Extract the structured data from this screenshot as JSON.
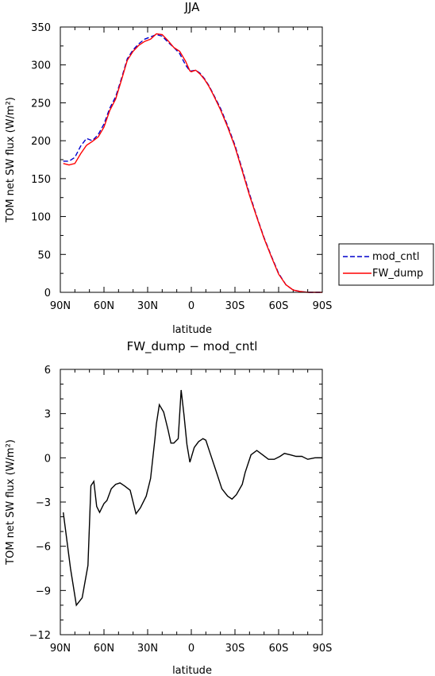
{
  "chart_data": [
    {
      "type": "line",
      "title": "JJA",
      "xlabel": "latitude",
      "ylabel": "TOM net SW flux (W/m²)",
      "xlim": [
        -90,
        90
      ],
      "ylim": [
        0,
        350
      ],
      "x_ticks": [
        -90,
        -60,
        -30,
        0,
        30,
        60,
        90
      ],
      "x_tick_labels": [
        "90N",
        "60N",
        "30N",
        "0",
        "30S",
        "60S",
        "90S"
      ],
      "y_ticks": [
        0,
        50,
        100,
        150,
        200,
        250,
        300,
        350
      ],
      "y_tick_labels": [
        "0",
        "50",
        "100",
        "150",
        "200",
        "250",
        "300",
        "350"
      ],
      "legend": "right",
      "series": [
        {
          "name": "mod_cntl",
          "color": "#0000cc",
          "dash": "dashed",
          "x": [
            -88,
            -84,
            -80,
            -76,
            -72,
            -68,
            -64,
            -60,
            -56,
            -52,
            -48,
            -44,
            -40,
            -36,
            -32,
            -28,
            -24,
            -20,
            -16,
            -12,
            -8,
            -4,
            -1,
            0,
            3,
            6,
            9,
            12,
            15,
            20,
            25,
            30,
            35,
            40,
            45,
            50,
            55,
            60,
            65,
            70,
            75,
            80,
            85,
            90
          ],
          "y": [
            173,
            173,
            178,
            193,
            203,
            200,
            208,
            222,
            243,
            258,
            282,
            308,
            320,
            328,
            334,
            337,
            340,
            338,
            330,
            323,
            315,
            300,
            292,
            292,
            293,
            289,
            282,
            273,
            262,
            243,
            220,
            194,
            162,
            130,
            100,
            72,
            48,
            25,
            10,
            3,
            1,
            0,
            0,
            0
          ]
        },
        {
          "name": "FW_dump",
          "color": "#ff0000",
          "dash": "solid",
          "x": [
            -88,
            -84,
            -80,
            -76,
            -72,
            -68,
            -64,
            -60,
            -56,
            -52,
            -48,
            -44,
            -40,
            -36,
            -32,
            -28,
            -24,
            -20,
            -16,
            -12,
            -8,
            -4,
            -1,
            0,
            3,
            6,
            9,
            12,
            15,
            20,
            25,
            30,
            35,
            40,
            45,
            50,
            55,
            60,
            65,
            70,
            75,
            80,
            85,
            90
          ],
          "y": [
            170,
            168,
            170,
            183,
            194,
            199,
            205,
            218,
            240,
            255,
            280,
            306,
            318,
            326,
            331,
            334,
            341,
            340,
            332,
            323,
            318,
            305,
            292,
            291,
            293,
            288,
            281,
            272,
            261,
            241,
            218,
            192,
            160,
            128,
            99,
            71,
            47,
            24,
            10,
            3,
            1,
            0,
            0,
            0
          ]
        }
      ]
    },
    {
      "type": "line",
      "title": "FW_dump − mod_cntl",
      "xlabel": "latitude",
      "ylabel": "TOM net SW flux (W/m²)",
      "xlim": [
        -90,
        90
      ],
      "ylim": [
        -12,
        6
      ],
      "x_ticks": [
        -90,
        -60,
        -30,
        0,
        30,
        60,
        90
      ],
      "x_tick_labels": [
        "90N",
        "60N",
        "30N",
        "0",
        "30S",
        "60S",
        "90S"
      ],
      "y_ticks": [
        -12,
        -9,
        -6,
        -3,
        0,
        3,
        6
      ],
      "y_tick_labels": [
        "−12",
        "−9",
        "−6",
        "−3",
        "0",
        "3",
        "6"
      ],
      "series": [
        {
          "color": "#000000",
          "dash": "solid",
          "x": [
            -88,
            -83,
            -79,
            -75,
            -71,
            -69,
            -67,
            -65,
            -63,
            -60,
            -58,
            -55,
            -52,
            -49,
            -46,
            -42,
            -38,
            -35,
            -31,
            -28,
            -25,
            -24,
            -22,
            -19,
            -16,
            -14,
            -12,
            -9,
            -7,
            -5,
            -3,
            -1,
            2,
            5,
            8,
            10,
            13,
            17,
            21,
            25,
            28,
            31,
            35,
            37,
            41,
            45,
            49,
            53,
            57,
            61,
            64,
            68,
            72,
            76,
            80,
            85,
            90
          ],
          "y": [
            -3.7,
            -7.5,
            -10,
            -9.5,
            -7.3,
            -1.9,
            -1.6,
            -3.3,
            -3.7,
            -3.1,
            -2.9,
            -2.1,
            -1.8,
            -1.7,
            -1.9,
            -2.2,
            -3.8,
            -3.4,
            -2.6,
            -1.4,
            1.3,
            2.3,
            3.6,
            3.1,
            1.9,
            1.0,
            1.0,
            1.3,
            4.6,
            2.9,
            0.9,
            -0.3,
            0.7,
            1.1,
            1.3,
            1.2,
            0.3,
            -0.9,
            -2.1,
            -2.6,
            -2.8,
            -2.5,
            -1.8,
            -1.0,
            0.2,
            0.5,
            0.2,
            -0.1,
            -0.1,
            0.1,
            0.3,
            0.2,
            0.1,
            0.1,
            -0.1,
            0,
            0
          ]
        }
      ]
    }
  ]
}
